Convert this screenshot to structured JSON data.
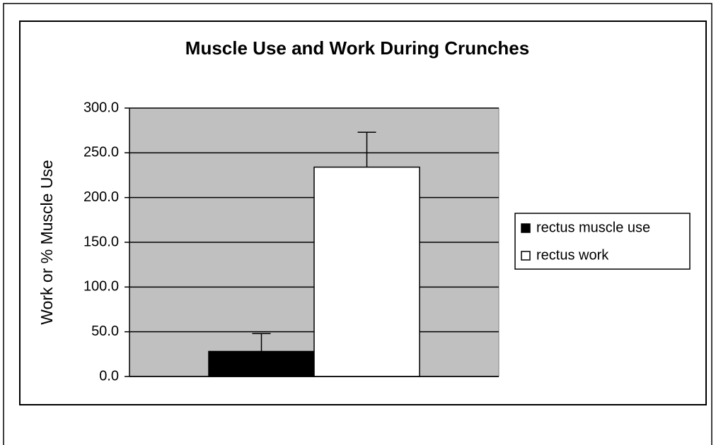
{
  "chart_data": {
    "type": "bar",
    "title": "Muscle Use and Work During Crunches",
    "y_label": "Work or % Muscle Use",
    "categories": [
      null
    ],
    "series": [
      {
        "name": "rectus muscle use",
        "color": "#000000",
        "values": [
          28
        ],
        "errors": [
          20
        ]
      },
      {
        "name": "rectus work",
        "color": "#ffffff",
        "values": [
          234
        ],
        "errors": [
          39
        ]
      }
    ],
    "ylim": [
      0,
      300
    ],
    "yticks": [
      {
        "value": 0,
        "label": "0.0"
      },
      {
        "value": 50,
        "label": "50.0"
      },
      {
        "value": 100,
        "label": "100.0"
      },
      {
        "value": 150,
        "label": "150.0"
      },
      {
        "value": 200,
        "label": "200.0"
      },
      {
        "value": 250,
        "label": "250.0"
      },
      {
        "value": 300,
        "label": "300.0"
      }
    ],
    "grid": true,
    "legend": "right"
  }
}
